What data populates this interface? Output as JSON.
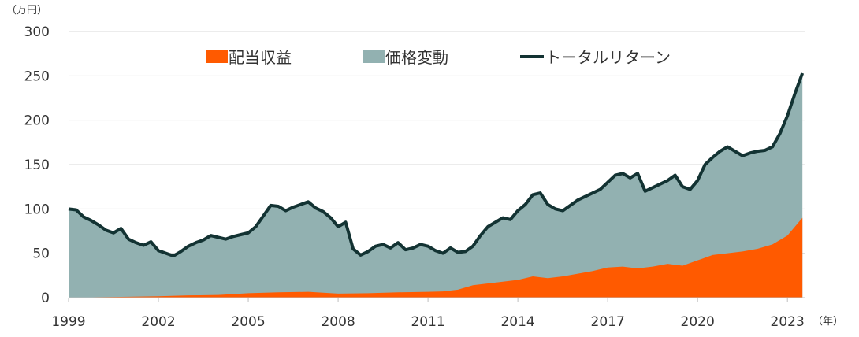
{
  "chart_data": {
    "type": "area",
    "unit_y": "（万円）",
    "unit_x": "（年）",
    "ylim": [
      0,
      300
    ],
    "y_ticks": [
      "0",
      "50",
      "100",
      "150",
      "200",
      "250",
      "300"
    ],
    "x_ticks": [
      "1999",
      "2002",
      "2005",
      "2008",
      "2011",
      "2014",
      "2017",
      "2020",
      "2023"
    ],
    "xlim": [
      1999,
      2023.6
    ],
    "grid": true,
    "legend_position": "top",
    "legend": [
      {
        "label": "配当収益",
        "color": "#ff5a00",
        "shape": "square"
      },
      {
        "label": "価格変動",
        "color": "#92b1b1",
        "shape": "square"
      },
      {
        "label": "トータルリターン",
        "color": "#133333",
        "shape": "line"
      }
    ],
    "series": [
      {
        "name": "トータルリターン",
        "x": [
          1999.0,
          1999.25,
          1999.5,
          1999.75,
          2000.0,
          2000.25,
          2000.5,
          2000.75,
          2001.0,
          2001.25,
          2001.5,
          2001.75,
          2002.0,
          2002.25,
          2002.5,
          2002.75,
          2003.0,
          2003.25,
          2003.5,
          2003.75,
          2004.0,
          2004.25,
          2004.5,
          2004.75,
          2005.0,
          2005.25,
          2005.5,
          2005.75,
          2006.0,
          2006.25,
          2006.5,
          2006.75,
          2007.0,
          2007.25,
          2007.5,
          2007.75,
          2008.0,
          2008.25,
          2008.5,
          2008.75,
          2009.0,
          2009.25,
          2009.5,
          2009.75,
          2010.0,
          2010.25,
          2010.5,
          2010.75,
          2011.0,
          2011.25,
          2011.5,
          2011.75,
          2012.0,
          2012.25,
          2012.5,
          2012.75,
          2013.0,
          2013.25,
          2013.5,
          2013.75,
          2014.0,
          2014.25,
          2014.5,
          2014.75,
          2015.0,
          2015.25,
          2015.5,
          2015.75,
          2016.0,
          2016.25,
          2016.5,
          2016.75,
          2017.0,
          2017.25,
          2017.5,
          2017.75,
          2018.0,
          2018.25,
          2018.5,
          2018.75,
          2019.0,
          2019.25,
          2019.5,
          2019.75,
          2020.0,
          2020.25,
          2020.5,
          2020.75,
          2021.0,
          2021.25,
          2021.5,
          2021.75,
          2022.0,
          2022.25,
          2022.5,
          2022.75,
          2023.0,
          2023.25,
          2023.5
        ],
        "values": [
          100,
          99,
          91,
          87,
          82,
          76,
          73,
          78,
          66,
          62,
          59,
          63,
          53,
          50,
          47,
          52,
          58,
          62,
          65,
          70,
          68,
          66,
          69,
          71,
          73,
          80,
          92,
          104,
          103,
          98,
          102,
          105,
          108,
          101,
          97,
          90,
          80,
          85,
          55,
          48,
          52,
          58,
          60,
          56,
          62,
          54,
          56,
          60,
          58,
          53,
          50,
          56,
          51,
          52,
          58,
          70,
          80,
          85,
          90,
          88,
          98,
          105,
          116,
          118,
          105,
          100,
          98,
          104,
          110,
          114,
          118,
          122,
          130,
          138,
          140,
          135,
          140,
          120,
          124,
          128,
          132,
          138,
          125,
          122,
          132,
          150,
          158,
          165,
          170,
          165,
          160,
          163,
          165,
          166,
          170,
          185,
          205,
          230,
          253
        ]
      },
      {
        "name": "配当収益",
        "x": [
          1999.0,
          2000.0,
          2001.0,
          2002.0,
          2003.0,
          2004.0,
          2005.0,
          2006.0,
          2007.0,
          2008.0,
          2009.0,
          2010.0,
          2011.0,
          2011.5,
          2012.0,
          2012.5,
          2013.0,
          2013.5,
          2014.0,
          2014.5,
          2015.0,
          2015.5,
          2016.0,
          2016.5,
          2017.0,
          2017.5,
          2018.0,
          2018.5,
          2019.0,
          2019.5,
          2020.0,
          2020.5,
          2021.0,
          2021.5,
          2022.0,
          2022.5,
          2023.0,
          2023.5
        ],
        "values": [
          0,
          0.5,
          1,
          1.5,
          2.5,
          3,
          5,
          6,
          6.5,
          4.5,
          5,
          6,
          6.5,
          7,
          9,
          14,
          16,
          18,
          20,
          24,
          22,
          24,
          27,
          30,
          34,
          35,
          33,
          35,
          38,
          36,
          42,
          48,
          50,
          52,
          55,
          60,
          70,
          90
        ]
      }
    ]
  }
}
